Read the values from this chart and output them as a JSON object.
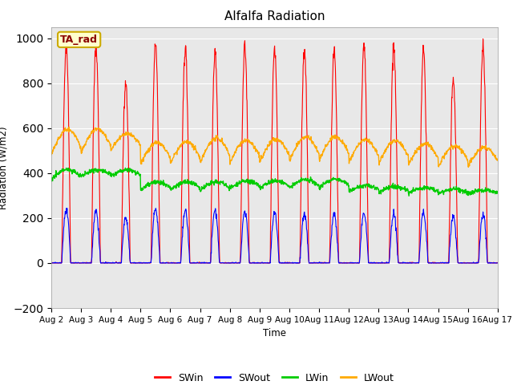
{
  "title": "Alfalfa Radiation",
  "ylabel": "Radiation (W/m2)",
  "xlabel": "Time",
  "ylim": [
    -200,
    1050
  ],
  "background_color": "#e8e8e8",
  "fig_background": "#ffffff",
  "annotation_label": "TA_rad",
  "legend_entries": [
    "SWin",
    "SWout",
    "LWin",
    "LWout"
  ],
  "line_colors": {
    "SWin": "#ff0000",
    "SWout": "#0000ff",
    "LWin": "#00cc00",
    "LWout": "#ffaa00"
  },
  "x_tick_labels": [
    "Aug 2",
    "Aug 3",
    "Aug 4",
    "Aug 5",
    "Aug 6",
    "Aug 7",
    "Aug 8",
    "Aug 9",
    "Aug 10",
    "Aug 11",
    "Aug 12",
    "Aug 13",
    "Aug 14",
    "Aug 15",
    "Aug 16",
    "Aug 17"
  ],
  "n_days": 15,
  "points_per_day": 96,
  "SWin_peak": [
    970,
    970,
    800,
    980,
    960,
    950,
    960,
    960,
    940,
    940,
    960,
    960,
    950,
    810,
    960
  ],
  "SWout_peak": [
    235,
    235,
    200,
    245,
    235,
    235,
    230,
    225,
    220,
    220,
    225,
    220,
    225,
    205,
    215
  ],
  "LWin_base": [
    345,
    365,
    365,
    300,
    300,
    300,
    310,
    310,
    310,
    305,
    300,
    295,
    295,
    290,
    295
  ],
  "LWin_peak": [
    415,
    415,
    415,
    360,
    360,
    360,
    365,
    365,
    370,
    375,
    345,
    340,
    335,
    330,
    325
  ],
  "LWout_base": [
    400,
    420,
    450,
    375,
    370,
    370,
    375,
    375,
    380,
    385,
    370,
    370,
    370,
    365,
    370
  ],
  "LWout_peak": [
    595,
    595,
    575,
    535,
    540,
    555,
    545,
    550,
    560,
    560,
    550,
    545,
    530,
    520,
    515
  ]
}
